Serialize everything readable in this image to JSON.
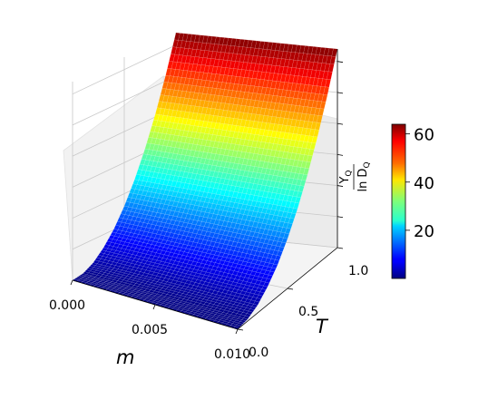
{
  "chart_data": {
    "type": "surface3d",
    "colormap": "jet",
    "x_axis": {
      "label": "m",
      "range": [
        0.0,
        0.01
      ],
      "ticks": [
        0.0,
        0.005,
        0.01
      ],
      "tick_labels": [
        "0.000",
        "0.005",
        "0.010"
      ]
    },
    "y_axis": {
      "label": "T",
      "range": [
        0.0,
        1.0
      ],
      "ticks": [
        0.0,
        0.5,
        1.0
      ],
      "tick_labels": [
        "0.0",
        "0.5",
        "1.0"
      ]
    },
    "z_axis": {
      "label_main": "Y",
      "label_main_sub": "Q",
      "label_den": "ln D",
      "label_den_sub": "Q",
      "range": [
        0,
        64
      ],
      "tick_values": [
        10,
        20,
        30,
        40,
        50,
        60
      ],
      "tick_labels_visible": false
    },
    "surface": {
      "description": "value independent of m, increases with T",
      "T": [
        0.0,
        0.1,
        0.2,
        0.3,
        0.4,
        0.5,
        0.6,
        0.7,
        0.8,
        0.9,
        1.0
      ],
      "z": [
        0.0,
        0.6,
        2.5,
        5.8,
        10.2,
        16.0,
        23.0,
        31.3,
        40.9,
        51.8,
        64.0
      ]
    },
    "colorbar": {
      "range": [
        0,
        64
      ],
      "ticks": [
        20,
        40,
        60
      ],
      "tick_labels": [
        "20",
        "40",
        "60"
      ]
    }
  }
}
